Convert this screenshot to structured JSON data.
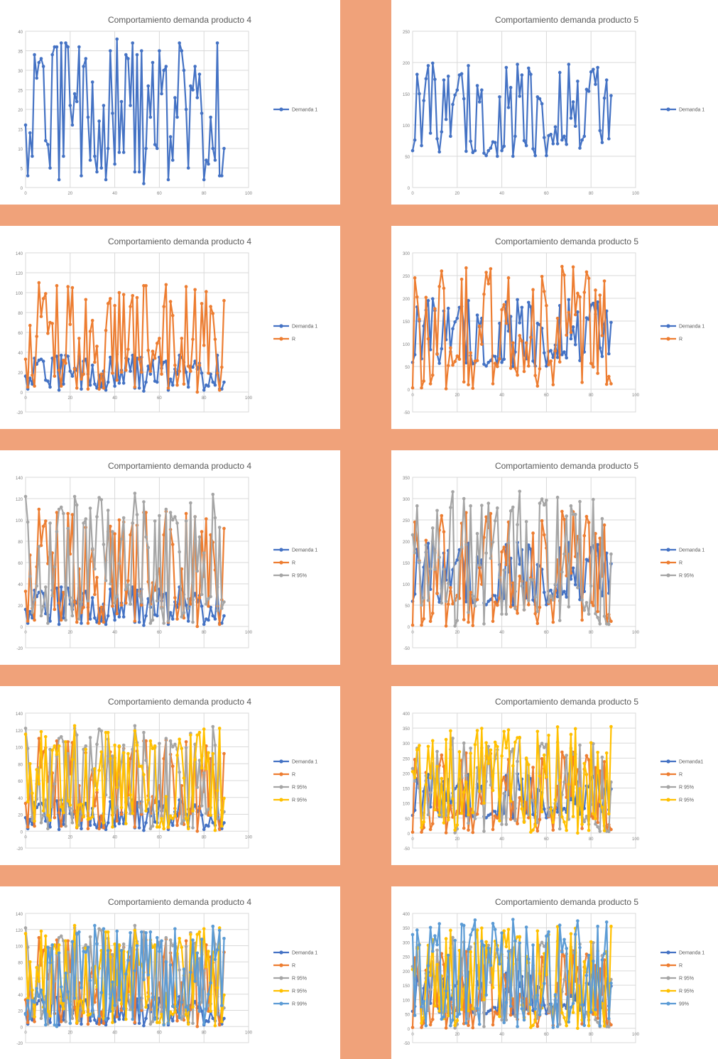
{
  "colors": {
    "background_bands": "#f0a27a",
    "panel": "#ffffff",
    "gridline": "#d9d9d9",
    "title_text": "#595959"
  },
  "chart_data": [
    {
      "type": "line",
      "title": "Comportamiento demanda producto 4",
      "ylim": [
        0,
        40
      ],
      "yticks": [
        0,
        5,
        10,
        15,
        20,
        25,
        30,
        35,
        40
      ],
      "xlim": [
        0,
        100
      ],
      "xticks": [
        0,
        20,
        40,
        60,
        80,
        100
      ],
      "legend": "right",
      "series": [
        {
          "name": "Demanda 1",
          "color": "#4472c4",
          "seed": 11,
          "min": 1,
          "max": 38
        }
      ]
    },
    {
      "type": "line",
      "title": "Comportamiento demanda producto 5",
      "ylim": [
        0,
        250
      ],
      "yticks": [
        0,
        50,
        100,
        150,
        200,
        250
      ],
      "xlim": [
        0,
        100
      ],
      "xticks": [
        0,
        20,
        40,
        60,
        80,
        100
      ],
      "legend": "right",
      "series": [
        {
          "name": "Demanda 1",
          "color": "#4472c4",
          "seed": 21,
          "min": 50,
          "max": 200
        }
      ]
    },
    {
      "type": "line",
      "title": "Comportamiento demanda producto 4",
      "ylim": [
        -20,
        140
      ],
      "yticks": [
        -20,
        0,
        20,
        40,
        60,
        80,
        100,
        120,
        140
      ],
      "xlim": [
        0,
        100
      ],
      "xticks": [
        0,
        20,
        40,
        60,
        80,
        100
      ],
      "legend": "right",
      "series": [
        {
          "name": "Demanda 1",
          "color": "#4472c4",
          "seed": 11,
          "min": 1,
          "max": 38
        },
        {
          "name": "R",
          "color": "#ed7d31",
          "seed": 12,
          "min": 0,
          "max": 110
        }
      ]
    },
    {
      "type": "line",
      "title": "Comportamiento demanda producto 5",
      "ylim": [
        -50,
        300
      ],
      "yticks": [
        -50,
        0,
        50,
        100,
        150,
        200,
        250,
        300
      ],
      "xlim": [
        0,
        100
      ],
      "xticks": [
        0,
        20,
        40,
        60,
        80,
        100
      ],
      "legend": "right",
      "series": [
        {
          "name": "Demanda 1",
          "color": "#4472c4",
          "seed": 21,
          "min": 50,
          "max": 200
        },
        {
          "name": "R",
          "color": "#ed7d31",
          "seed": 22,
          "min": 0,
          "max": 270
        }
      ]
    },
    {
      "type": "line",
      "title": "Comportamiento demanda producto 4",
      "ylim": [
        -20,
        140
      ],
      "yticks": [
        -20,
        0,
        20,
        40,
        60,
        80,
        100,
        120,
        140
      ],
      "xlim": [
        0,
        100
      ],
      "xticks": [
        0,
        20,
        40,
        60,
        80,
        100
      ],
      "legend": "right",
      "series": [
        {
          "name": "Demanda 1",
          "color": "#4472c4",
          "seed": 11,
          "min": 1,
          "max": 38
        },
        {
          "name": "R",
          "color": "#ed7d31",
          "seed": 12,
          "min": 0,
          "max": 110
        },
        {
          "name": "R 95%",
          "color": "#a5a5a5",
          "seed": 13,
          "min": 0,
          "max": 125
        }
      ]
    },
    {
      "type": "line",
      "title": "Comportamiento demanda producto 5",
      "ylim": [
        -50,
        350
      ],
      "yticks": [
        -50,
        0,
        50,
        100,
        150,
        200,
        250,
        300,
        350
      ],
      "xlim": [
        0,
        100
      ],
      "xticks": [
        0,
        20,
        40,
        60,
        80,
        100
      ],
      "legend": "right",
      "series": [
        {
          "name": "Demanda 1",
          "color": "#4472c4",
          "seed": 21,
          "min": 50,
          "max": 200
        },
        {
          "name": "R",
          "color": "#ed7d31",
          "seed": 22,
          "min": 0,
          "max": 270
        },
        {
          "name": "R 95%",
          "color": "#a5a5a5",
          "seed": 23,
          "min": 0,
          "max": 320
        }
      ]
    },
    {
      "type": "line",
      "title": "Comportamiento demanda producto 4",
      "ylim": [
        -20,
        140
      ],
      "yticks": [
        -20,
        0,
        20,
        40,
        60,
        80,
        100,
        120,
        140
      ],
      "xlim": [
        0,
        100
      ],
      "xticks": [
        0,
        20,
        40,
        60,
        80,
        100
      ],
      "legend": "right",
      "series": [
        {
          "name": "Demanda 1",
          "color": "#4472c4",
          "seed": 11,
          "min": 1,
          "max": 38
        },
        {
          "name": "R",
          "color": "#ed7d31",
          "seed": 12,
          "min": 0,
          "max": 110
        },
        {
          "name": "R 95%",
          "color": "#a5a5a5",
          "seed": 13,
          "min": 0,
          "max": 125
        },
        {
          "name": "R 95%",
          "color": "#ffc000",
          "seed": 14,
          "min": 0,
          "max": 125
        }
      ]
    },
    {
      "type": "line",
      "title": "Comportamiento demanda producto 5",
      "ylim": [
        -50,
        400
      ],
      "yticks": [
        -50,
        0,
        50,
        100,
        150,
        200,
        250,
        300,
        350,
        400
      ],
      "xlim": [
        0,
        100
      ],
      "xticks": [
        0,
        20,
        40,
        60,
        80,
        100
      ],
      "legend": "right",
      "series": [
        {
          "name": "Demanda1",
          "color": "#4472c4",
          "seed": 21,
          "min": 50,
          "max": 200
        },
        {
          "name": "R",
          "color": "#ed7d31",
          "seed": 22,
          "min": 0,
          "max": 270
        },
        {
          "name": "R 95%",
          "color": "#a5a5a5",
          "seed": 23,
          "min": 0,
          "max": 320
        },
        {
          "name": "R 95%",
          "color": "#ffc000",
          "seed": 24,
          "min": 0,
          "max": 360
        }
      ]
    },
    {
      "type": "line",
      "title": "Comportamiento demanda producto 4",
      "ylim": [
        -20,
        140
      ],
      "yticks": [
        -20,
        0,
        20,
        40,
        60,
        80,
        100,
        120,
        140
      ],
      "xlim": [
        0,
        100
      ],
      "xticks": [
        0,
        20,
        40,
        60,
        80,
        100
      ],
      "legend": "right",
      "series": [
        {
          "name": "Demanda 1",
          "color": "#4472c4",
          "seed": 11,
          "min": 1,
          "max": 38
        },
        {
          "name": "R",
          "color": "#ed7d31",
          "seed": 12,
          "min": 0,
          "max": 110
        },
        {
          "name": "R 95%",
          "color": "#a5a5a5",
          "seed": 13,
          "min": 0,
          "max": 125
        },
        {
          "name": "R 95%",
          "color": "#ffc000",
          "seed": 14,
          "min": 0,
          "max": 125
        },
        {
          "name": "R 99%",
          "color": "#5b9bd5",
          "seed": 15,
          "min": 0,
          "max": 125
        }
      ]
    },
    {
      "type": "line",
      "title": "Comportamiento demanda producto 5",
      "ylim": [
        -50,
        400
      ],
      "yticks": [
        -50,
        0,
        50,
        100,
        150,
        200,
        250,
        300,
        350,
        400
      ],
      "xlim": [
        0,
        100
      ],
      "xticks": [
        0,
        20,
        40,
        60,
        80,
        100
      ],
      "legend": "right",
      "series": [
        {
          "name": "Demanda 1",
          "color": "#4472c4",
          "seed": 21,
          "min": 50,
          "max": 200
        },
        {
          "name": "R",
          "color": "#ed7d31",
          "seed": 22,
          "min": 0,
          "max": 270
        },
        {
          "name": "R 95%",
          "color": "#a5a5a5",
          "seed": 23,
          "min": 0,
          "max": 320
        },
        {
          "name": "R 95%",
          "color": "#ffc000",
          "seed": 24,
          "min": 0,
          "max": 360
        },
        {
          "name": "99%",
          "color": "#5b9bd5",
          "seed": 25,
          "min": 0,
          "max": 380
        }
      ]
    }
  ]
}
